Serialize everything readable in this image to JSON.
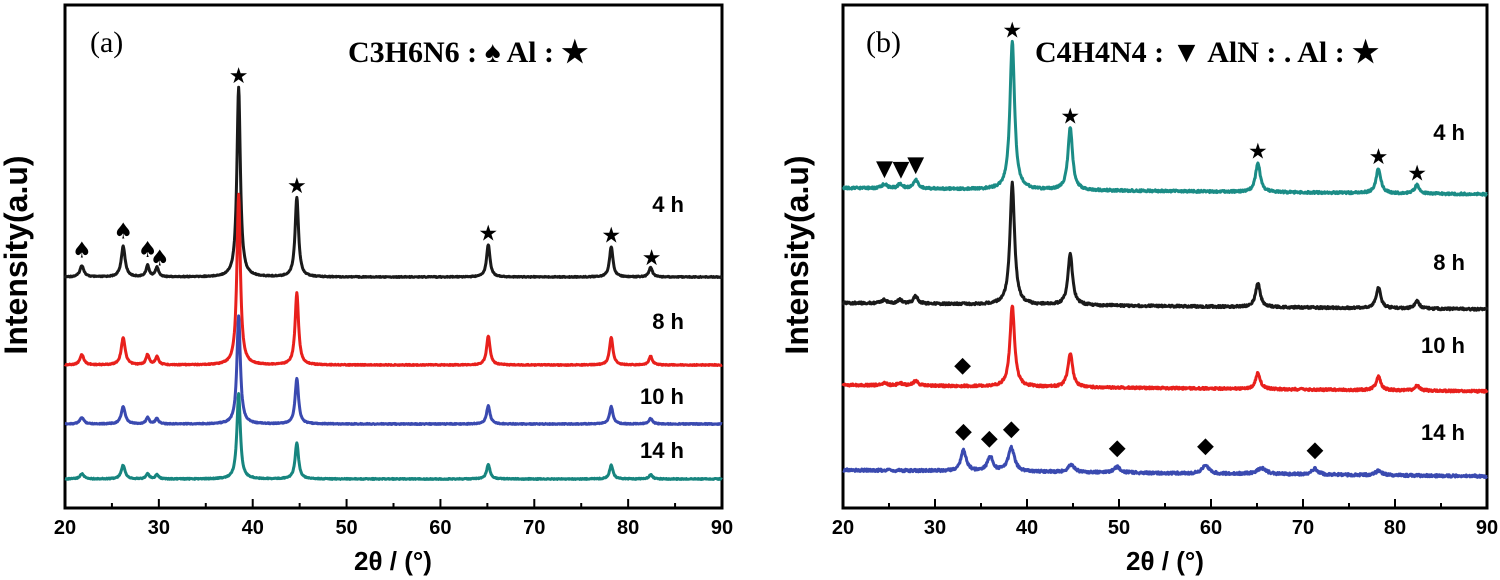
{
  "chart_data": [
    {
      "type": "line",
      "panel_label": "(a)",
      "legend_text": "C3H6N6 : ♠   Al : ★",
      "xlabel": "2θ / (°)",
      "ylabel": "Intensity(a.u)",
      "xlim": [
        20,
        90
      ],
      "xticks": [
        "20",
        "30",
        "40",
        "50",
        "60",
        "70",
        "80",
        "90"
      ],
      "peaks": [
        {
          "x": 21.8,
          "rel": 0.06,
          "w": 0.25
        },
        {
          "x": 26.2,
          "rel": 0.16,
          "w": 0.25
        },
        {
          "x": 28.8,
          "rel": 0.06,
          "w": 0.2
        },
        {
          "x": 29.8,
          "rel": 0.05,
          "w": 0.2
        },
        {
          "x": 38.5,
          "rel": 1.0,
          "w": 0.22
        },
        {
          "x": 44.7,
          "rel": 0.42,
          "w": 0.22
        },
        {
          "x": 65.1,
          "rel": 0.17,
          "w": 0.22
        },
        {
          "x": 78.2,
          "rel": 0.16,
          "w": 0.22
        },
        {
          "x": 82.4,
          "rel": 0.05,
          "w": 0.22
        }
      ],
      "series": [
        {
          "name": "4 h",
          "color": "#1a1a1a",
          "scale": 1.0,
          "peak_scale": 1.0
        },
        {
          "name": "8 h",
          "color": "#e8201c",
          "scale": 1.0,
          "peak_scale": 0.9
        },
        {
          "name": "10 h",
          "color": "#3a4ab0",
          "scale": 1.0,
          "peak_scale": 0.57
        },
        {
          "name": "14 h",
          "color": "#17857f",
          "scale": 1.0,
          "peak_scale": 0.45
        }
      ],
      "markers": [
        {
          "symbol": "♠",
          "x": 21.8,
          "series": 0,
          "offset": 8
        },
        {
          "symbol": "♠",
          "x": 26.2,
          "series": 0,
          "offset": 8
        },
        {
          "symbol": "♠",
          "x": 28.8,
          "series": 0,
          "offset": 8
        },
        {
          "symbol": "♠",
          "x": 30.1,
          "series": 0,
          "offset": 8
        },
        {
          "symbol": "★",
          "x": 38.5,
          "series": 0,
          "offset": 4
        },
        {
          "symbol": "★",
          "x": 44.7,
          "series": 0,
          "offset": 4
        },
        {
          "symbol": "★",
          "x": 65.1,
          "series": 0,
          "offset": 4
        },
        {
          "symbol": "★",
          "x": 78.2,
          "series": 0,
          "offset": 4
        },
        {
          "symbol": "★",
          "x": 82.5,
          "series": 0,
          "offset": 4
        }
      ]
    },
    {
      "type": "line",
      "panel_label": "(b)",
      "legend_text": "C4H4N4 : ▼ AlN : .  Al : ★",
      "xlabel": "2θ / (°)",
      "ylabel": "Intensity(a.u)",
      "xlim": [
        20,
        90
      ],
      "xticks": [
        "20",
        "30",
        "40",
        "50",
        "60",
        "70",
        "80",
        "90"
      ],
      "peaks": [
        {
          "x": 24.5,
          "rel": 0.03,
          "w": 0.3
        },
        {
          "x": 26.2,
          "rel": 0.03,
          "w": 0.3
        },
        {
          "x": 27.9,
          "rel": 0.06,
          "w": 0.3
        },
        {
          "x": 33.2,
          "rel": 0.0,
          "w": 0.4
        },
        {
          "x": 38.4,
          "rel": 1.0,
          "w": 0.3
        },
        {
          "x": 44.7,
          "rel": 0.42,
          "w": 0.3
        },
        {
          "x": 65.1,
          "rel": 0.2,
          "w": 0.3
        },
        {
          "x": 78.2,
          "rel": 0.17,
          "w": 0.3
        },
        {
          "x": 82.4,
          "rel": 0.06,
          "w": 0.3
        }
      ],
      "series": [
        {
          "name": "4 h",
          "color": "#1b8c86",
          "peak_scale": 1.0
        },
        {
          "name": "8 h",
          "color": "#1a1a1a",
          "peak_scale": 0.82
        },
        {
          "name": "10 h",
          "color": "#e8201c",
          "peak_scale": 0.55
        },
        {
          "name": "14 h",
          "color": "#3a4ab0",
          "peak_scale": 0.0
        }
      ],
      "series14_peaks": [
        {
          "x": 33.1,
          "rel": 0.14,
          "w": 0.35
        },
        {
          "x": 36.0,
          "rel": 0.1,
          "w": 0.35
        },
        {
          "x": 38.3,
          "rel": 0.16,
          "w": 0.4
        },
        {
          "x": 44.8,
          "rel": 0.05,
          "w": 0.4
        },
        {
          "x": 49.8,
          "rel": 0.04,
          "w": 0.4
        },
        {
          "x": 59.4,
          "rel": 0.06,
          "w": 0.4
        },
        {
          "x": 65.5,
          "rel": 0.04,
          "w": 0.6
        },
        {
          "x": 71.3,
          "rel": 0.04,
          "w": 0.4
        },
        {
          "x": 78.2,
          "rel": 0.03,
          "w": 0.4
        }
      ],
      "markers": [
        {
          "symbol": "▼",
          "x": 24.5,
          "series": 0,
          "offset": 8
        },
        {
          "symbol": "▼",
          "x": 26.3,
          "series": 0,
          "offset": 8
        },
        {
          "symbol": "▼",
          "x": 27.9,
          "series": 0,
          "offset": 8
        },
        {
          "symbol": "★",
          "x": 38.4,
          "series": 0,
          "offset": 4
        },
        {
          "symbol": "★",
          "x": 44.7,
          "series": 0,
          "offset": 4
        },
        {
          "symbol": "★",
          "x": 65.1,
          "series": 0,
          "offset": 4
        },
        {
          "symbol": "★",
          "x": 78.2,
          "series": 0,
          "offset": 4
        },
        {
          "symbol": "★",
          "x": 82.4,
          "series": 0,
          "offset": 4
        },
        {
          "symbol": "◆",
          "x": 33.0,
          "series": 2,
          "offset": 14
        },
        {
          "symbol": "◆",
          "x": 33.1,
          "series": 3,
          "offset": 12
        },
        {
          "symbol": "◆",
          "x": 35.9,
          "series": 3,
          "offset": 12
        },
        {
          "symbol": "◆",
          "x": 38.3,
          "series": 3,
          "offset": 12
        },
        {
          "symbol": "◆",
          "x": 49.8,
          "series": 3,
          "offset": 12
        },
        {
          "symbol": "◆",
          "x": 59.4,
          "series": 3,
          "offset": 12
        },
        {
          "symbol": "◆",
          "x": 71.3,
          "series": 3,
          "offset": 12
        }
      ]
    }
  ]
}
